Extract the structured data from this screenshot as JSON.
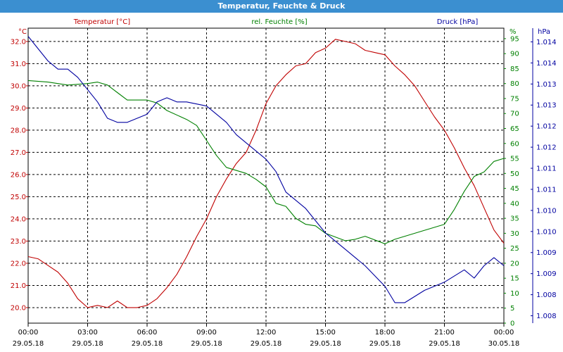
{
  "window": {
    "title": "Temperatur, Feuchte & Druck"
  },
  "chart_data": {
    "type": "line",
    "title": "Temperatur, Feuchte & Druck",
    "x_ticks": [
      {
        "time": "00:00",
        "date": "29.05.18"
      },
      {
        "time": "03:00",
        "date": "29.05.18"
      },
      {
        "time": "06:00",
        "date": "29.05.18"
      },
      {
        "time": "09:00",
        "date": "29.05.18"
      },
      {
        "time": "12:00",
        "date": "29.05.18"
      },
      {
        "time": "15:00",
        "date": "29.05.18"
      },
      {
        "time": "18:00",
        "date": "29.05.18"
      },
      {
        "time": "21:00",
        "date": "29.05.18"
      },
      {
        "time": "00:00",
        "date": "30.05.18"
      }
    ],
    "x_unit": "hours",
    "xlim": [
      0,
      24
    ],
    "grid": true,
    "axes": {
      "temperature": {
        "label": "Temperatur [°C]",
        "unit": "°C",
        "side": "left-inner",
        "color": "#c00000",
        "min": 19.3,
        "max": 32.6,
        "ticks": [
          "20.0",
          "21.0",
          "22.0",
          "23.0",
          "24.0",
          "25.0",
          "26.0",
          "27.0",
          "28.0",
          "29.0",
          "30.0",
          "31.0",
          "32.0"
        ]
      },
      "humidity": {
        "label": "rel. Feuchte [%]",
        "unit": "%",
        "side": "right-inner",
        "color": "#008000",
        "min": 0,
        "max": 98.5,
        "ticks": [
          "0",
          "5",
          "10",
          "15",
          "20",
          "25",
          "30",
          "35",
          "40",
          "45",
          "50",
          "55",
          "60",
          "65",
          "70",
          "75",
          "80",
          "85",
          "90",
          "95"
        ]
      },
      "pressure": {
        "label": "Druck [hPa]",
        "unit": "hPa",
        "side": "right-outer",
        "color": "#0000a0",
        "min": 1.0076,
        "max": 1.0148,
        "ticks": [
          "1.008",
          "1.008",
          "1.009",
          "1.009",
          "1.010",
          "1.010",
          "1.011",
          "1.011",
          "1.012",
          "1.012",
          "1.013",
          "1.013",
          "1.014",
          "1.014"
        ]
      }
    },
    "series": [
      {
        "name": "Temperatur [°C]",
        "axis": "temperature",
        "color": "#c00000",
        "points": [
          [
            0,
            22.3
          ],
          [
            0.5,
            22.2
          ],
          [
            1,
            21.9
          ],
          [
            1.5,
            21.6
          ],
          [
            2,
            21.1
          ],
          [
            2.5,
            20.4
          ],
          [
            3,
            20.0
          ],
          [
            3.5,
            20.1
          ],
          [
            4,
            20.0
          ],
          [
            4.5,
            20.3
          ],
          [
            5,
            20.0
          ],
          [
            5.5,
            20.0
          ],
          [
            6,
            20.1
          ],
          [
            6.5,
            20.4
          ],
          [
            7,
            20.9
          ],
          [
            7.5,
            21.5
          ],
          [
            8,
            22.3
          ],
          [
            8.5,
            23.2
          ],
          [
            9,
            24.0
          ],
          [
            9.5,
            25.0
          ],
          [
            10,
            25.8
          ],
          [
            10.5,
            26.5
          ],
          [
            11,
            27.0
          ],
          [
            11.5,
            28.0
          ],
          [
            12,
            29.2
          ],
          [
            12.5,
            30.0
          ],
          [
            13,
            30.5
          ],
          [
            13.5,
            30.9
          ],
          [
            14,
            31.0
          ],
          [
            14.5,
            31.5
          ],
          [
            15,
            31.7
          ],
          [
            15.5,
            32.1
          ],
          [
            16,
            32.0
          ],
          [
            16.5,
            31.9
          ],
          [
            17,
            31.6
          ],
          [
            17.5,
            31.5
          ],
          [
            18,
            31.4
          ],
          [
            18.5,
            30.9
          ],
          [
            19,
            30.5
          ],
          [
            19.5,
            30.0
          ],
          [
            20,
            29.3
          ],
          [
            20.5,
            28.6
          ],
          [
            21,
            28.0
          ],
          [
            21.5,
            27.2
          ],
          [
            22,
            26.3
          ],
          [
            22.5,
            25.5
          ],
          [
            23,
            24.5
          ],
          [
            23.5,
            23.5
          ],
          [
            24,
            22.9
          ]
        ]
      },
      {
        "name": "rel. Feuchte [%]",
        "axis": "humidity",
        "color": "#008000",
        "points": [
          [
            0,
            81
          ],
          [
            1,
            80.5
          ],
          [
            2,
            79.5
          ],
          [
            3,
            80
          ],
          [
            3.5,
            80.5
          ],
          [
            4,
            79.5
          ],
          [
            4.5,
            77
          ],
          [
            5,
            74.5
          ],
          [
            6,
            74.5
          ],
          [
            6.5,
            73.5
          ],
          [
            7,
            71
          ],
          [
            8,
            68
          ],
          [
            8.5,
            66
          ],
          [
            9,
            61
          ],
          [
            9.5,
            56
          ],
          [
            10,
            52
          ],
          [
            11,
            50
          ],
          [
            11.5,
            48
          ],
          [
            12,
            45.5
          ],
          [
            12.5,
            40
          ],
          [
            13,
            39
          ],
          [
            13.5,
            35
          ],
          [
            14,
            33
          ],
          [
            14.5,
            32.5
          ],
          [
            15,
            30
          ],
          [
            16,
            27.5
          ],
          [
            16.5,
            28
          ],
          [
            17,
            29
          ],
          [
            18,
            26.5
          ],
          [
            18.5,
            28
          ],
          [
            19,
            29
          ],
          [
            20,
            31
          ],
          [
            21,
            33
          ],
          [
            21.5,
            38
          ],
          [
            22,
            44
          ],
          [
            22.5,
            49
          ],
          [
            23,
            50.5
          ],
          [
            23.5,
            54
          ],
          [
            24,
            55
          ]
        ]
      },
      {
        "name": "Druck [hPa]",
        "axis": "pressure",
        "color": "#0000a0",
        "points": [
          [
            0,
            1.0146
          ],
          [
            0.5,
            1.0143
          ],
          [
            1,
            1.014
          ],
          [
            1.5,
            1.0138
          ],
          [
            2,
            1.0138
          ],
          [
            2.5,
            1.0136
          ],
          [
            3,
            1.0133
          ],
          [
            3.5,
            1.013
          ],
          [
            4,
            1.0126
          ],
          [
            4.5,
            1.0125
          ],
          [
            5,
            1.0125
          ],
          [
            5.5,
            1.0126
          ],
          [
            6,
            1.0127
          ],
          [
            6.5,
            1.013
          ],
          [
            7,
            1.0131
          ],
          [
            7.5,
            1.013
          ],
          [
            8,
            1.013
          ],
          [
            9,
            1.0129
          ],
          [
            9.5,
            1.0127
          ],
          [
            10,
            1.0125
          ],
          [
            10.5,
            1.0122
          ],
          [
            11,
            1.012
          ],
          [
            12,
            1.0116
          ],
          [
            12.5,
            1.0113
          ],
          [
            13,
            1.0108
          ],
          [
            14,
            1.0104
          ],
          [
            15,
            1.0098
          ],
          [
            15.5,
            1.0096
          ],
          [
            16,
            1.0094
          ],
          [
            17,
            1.009
          ],
          [
            18,
            1.0085
          ],
          [
            18.5,
            1.0081
          ],
          [
            19,
            1.0081
          ],
          [
            20,
            1.0084
          ],
          [
            21,
            1.0086
          ],
          [
            22,
            1.0089
          ],
          [
            22.5,
            1.0087
          ],
          [
            23,
            1.009
          ],
          [
            23.5,
            1.0092
          ],
          [
            24,
            1.009
          ]
        ]
      }
    ]
  }
}
